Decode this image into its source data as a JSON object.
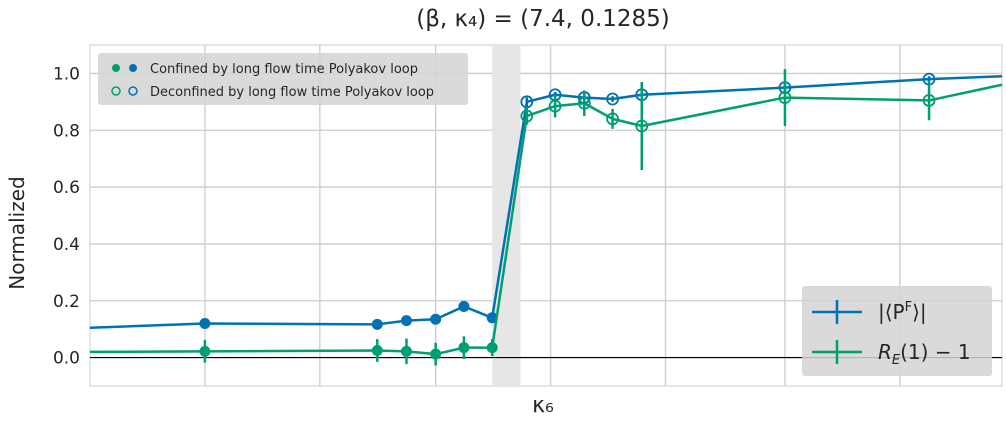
{
  "chart_data": {
    "type": "line",
    "title": "(β, κ₄) = (7.4, 0.1285)",
    "xlabel": "κ₆",
    "ylabel": "Normalized",
    "xlim": [
      0,
      1
    ],
    "ylim": [
      -0.1,
      1.1
    ],
    "yticks": [
      0.0,
      0.2,
      0.4,
      0.6,
      0.8,
      1.0
    ],
    "ytick_labels": [
      "0.0",
      "0.2",
      "0.4",
      "0.6",
      "0.8",
      "1.0"
    ],
    "grid": true,
    "shaded_band": {
      "x_from": 0.441,
      "x_to": 0.472
    },
    "zero_line": true,
    "marker_legend": {
      "placement": "top-left",
      "items": [
        {
          "label": "Confined by long flow time Polyakov loop",
          "filled": true
        },
        {
          "label": "Deconfined by long flow time Polyakov loop",
          "filled": false
        }
      ]
    },
    "series_legend": {
      "placement": "bottom-right"
    },
    "series": [
      {
        "name": "|⟨P^F⟩|",
        "color": "#0072b2",
        "x": [
          0.0,
          0.126,
          0.315,
          0.347,
          0.379,
          0.41,
          0.441,
          0.479,
          0.51,
          0.542,
          0.573,
          0.605,
          0.762,
          0.92,
          1.0
        ],
        "y": [
          0.105,
          0.12,
          0.117,
          0.13,
          0.135,
          0.18,
          0.14,
          0.9,
          0.925,
          0.915,
          0.91,
          0.925,
          0.95,
          0.98,
          0.99
        ],
        "err": [
          0,
          0.005,
          0.005,
          0.01,
          0.01,
          0.01,
          0.005,
          0.015,
          0.01,
          0.015,
          0.01,
          0.01,
          0.015,
          0.01,
          0
        ],
        "markers": [
          "none",
          "filled",
          "filled",
          "filled",
          "filled",
          "filled",
          "filled",
          "open",
          "open",
          "open",
          "open",
          "open",
          "open",
          "open",
          "none"
        ]
      },
      {
        "name": "R_E(1) − 1",
        "color": "#009e73",
        "x": [
          0.0,
          0.126,
          0.315,
          0.347,
          0.379,
          0.41,
          0.441,
          0.479,
          0.51,
          0.542,
          0.573,
          0.605,
          0.762,
          0.92,
          1.0
        ],
        "y": [
          0.02,
          0.022,
          0.025,
          0.022,
          0.012,
          0.035,
          0.035,
          0.85,
          0.885,
          0.895,
          0.84,
          0.815,
          0.915,
          0.905,
          0.96
        ],
        "err": [
          0,
          0.04,
          0.04,
          0.045,
          0.04,
          0.04,
          0.03,
          0.03,
          0.04,
          0.045,
          0.035,
          0.155,
          0.1,
          0.07,
          0
        ],
        "markers": [
          "none",
          "filled",
          "filled",
          "filled",
          "filled",
          "filled",
          "filled",
          "open",
          "open",
          "open",
          "open",
          "open",
          "open",
          "open",
          "none"
        ]
      }
    ]
  }
}
